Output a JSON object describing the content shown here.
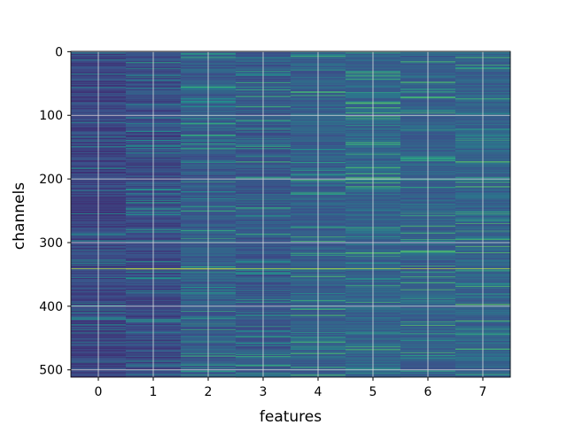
{
  "chart_data": {
    "type": "heatmap",
    "title": "",
    "xlabel": "features",
    "ylabel": "channels",
    "x_categories": [
      "0",
      "1",
      "2",
      "3",
      "4",
      "5",
      "6",
      "7"
    ],
    "y_ticks": [
      0,
      100,
      200,
      300,
      400,
      500
    ],
    "y_range": [
      0,
      511
    ],
    "y_inverted": true,
    "rows": 512,
    "columns": 8,
    "colormap": "viridis",
    "colormap_colors": [
      "#440154",
      "#3b528b",
      "#21918c",
      "#5ec962",
      "#fde725"
    ],
    "grid": true,
    "grid_color": "#dcdcdc",
    "column_intensity": [
      0.22,
      0.24,
      0.3,
      0.29,
      0.31,
      0.33,
      0.32,
      0.33
    ],
    "highlight_rows": [
      {
        "channel": 341,
        "values": [
          0.9,
          0.9,
          0.9,
          0.9,
          0.9,
          0.9,
          0.9,
          0.9
        ]
      }
    ]
  }
}
